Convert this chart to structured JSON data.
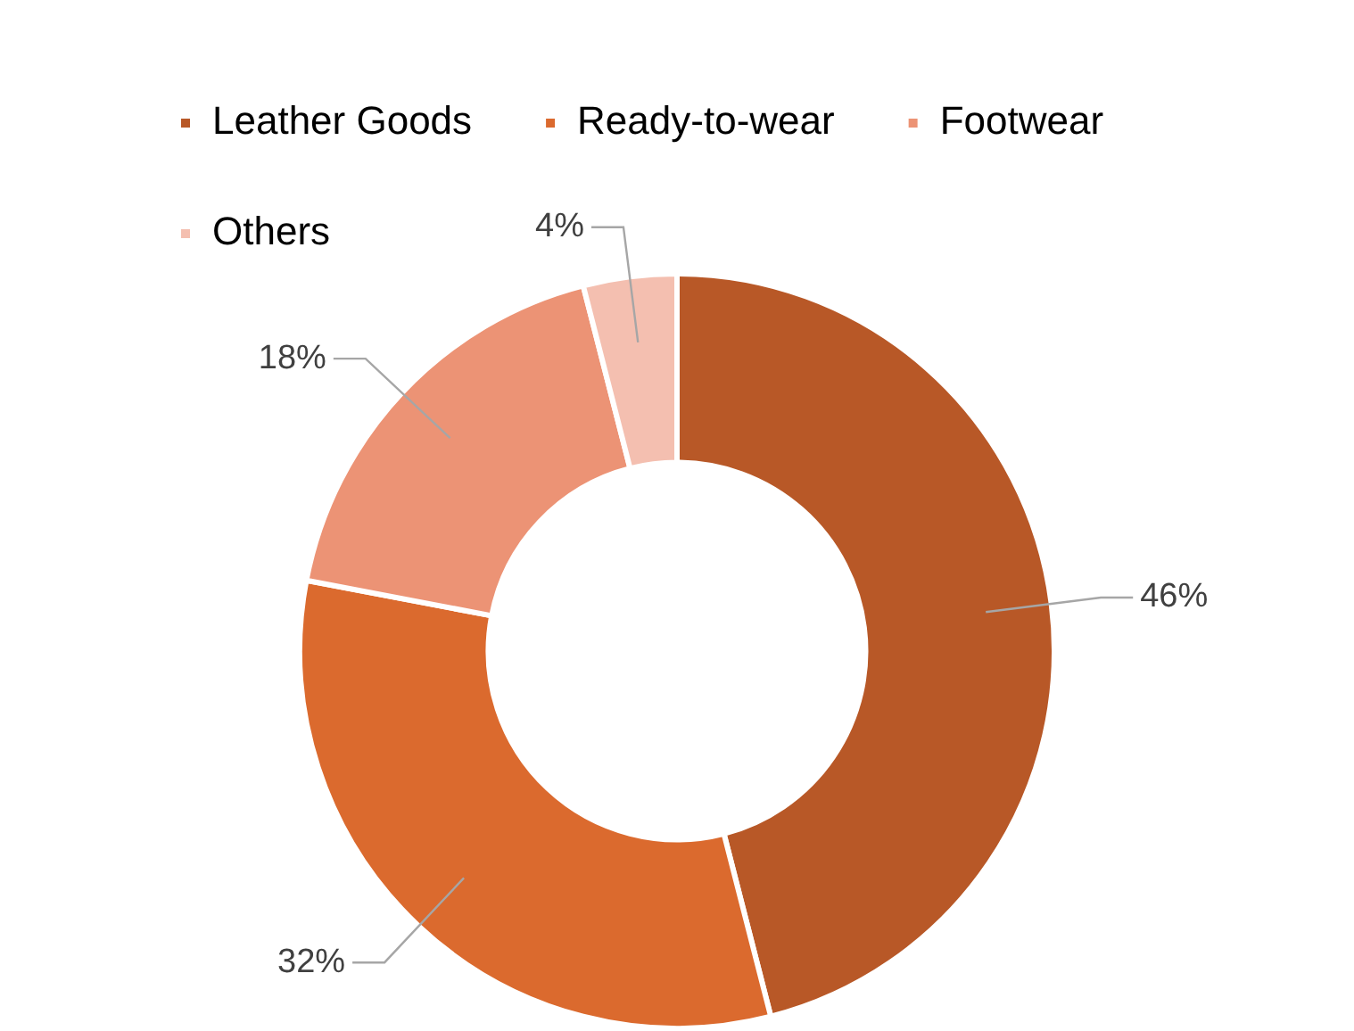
{
  "chart_data": {
    "type": "donut",
    "categories": [
      "Leather Goods",
      "Ready-to-wear",
      "Footwear",
      "Others"
    ],
    "values": [
      46,
      32,
      18,
      4
    ],
    "colors": [
      "#b85827",
      "#db6a2e",
      "#ec9375",
      "#f4bfb0"
    ],
    "value_labels": [
      "46%",
      "32%",
      "18%",
      "4%"
    ],
    "legend": "top left"
  }
}
